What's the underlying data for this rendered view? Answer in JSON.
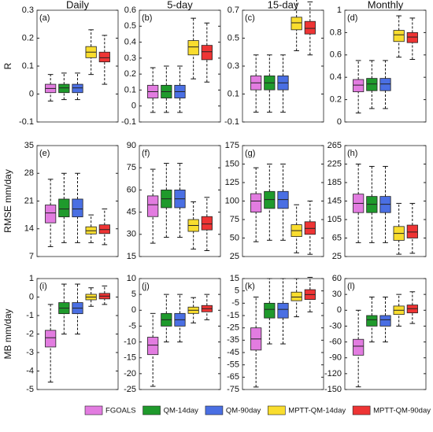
{
  "legend": [
    {
      "name": "FGOALS",
      "color": "#e27ce0"
    },
    {
      "name": "QM-14day",
      "color": "#1f9a2c"
    },
    {
      "name": "QM-90day",
      "color": "#4a6fe3"
    },
    {
      "name": "MPTT-QM-14day",
      "color": "#f9dd2e"
    },
    {
      "name": "MPTT-QM-90day",
      "color": "#ee3434"
    }
  ],
  "chart_data": [
    {
      "type": "box",
      "label": "(a)",
      "title": "Daily",
      "ylabel": "R",
      "ylim": [
        -0.1,
        0.3
      ],
      "yticks": [
        -0.1,
        0,
        0.1,
        0.2,
        0.3
      ],
      "boxes": [
        {
          "min": -0.025,
          "q1": 0.005,
          "median": 0.02,
          "q3": 0.035,
          "max": 0.07
        },
        {
          "min": -0.02,
          "q1": 0.005,
          "median": 0.022,
          "q3": 0.035,
          "max": 0.075
        },
        {
          "min": -0.02,
          "q1": 0.005,
          "median": 0.022,
          "q3": 0.035,
          "max": 0.075
        },
        {
          "min": 0.07,
          "q1": 0.13,
          "median": 0.15,
          "q3": 0.17,
          "max": 0.23
        },
        {
          "min": 0.035,
          "q1": 0.115,
          "median": 0.13,
          "q3": 0.15,
          "max": 0.21
        }
      ]
    },
    {
      "type": "box",
      "label": "(b)",
      "title": "5-day",
      "ylim": [
        -0.1,
        0.6
      ],
      "yticks": [
        -0.1,
        0,
        0.1,
        0.2,
        0.3,
        0.4,
        0.5,
        0.6
      ],
      "boxes": [
        {
          "min": -0.04,
          "q1": 0.05,
          "median": 0.09,
          "q3": 0.13,
          "max": 0.24
        },
        {
          "min": -0.04,
          "q1": 0.05,
          "median": 0.09,
          "q3": 0.13,
          "max": 0.25
        },
        {
          "min": -0.04,
          "q1": 0.05,
          "median": 0.09,
          "q3": 0.13,
          "max": 0.25
        },
        {
          "min": 0.17,
          "q1": 0.32,
          "median": 0.37,
          "q3": 0.41,
          "max": 0.55
        },
        {
          "min": 0.15,
          "q1": 0.29,
          "median": 0.34,
          "q3": 0.38,
          "max": 0.52
        }
      ]
    },
    {
      "type": "box",
      "label": "(c)",
      "title": "15-day",
      "ylim": [
        -0.1,
        0.7
      ],
      "yticks": [
        -0.1,
        0.1,
        0.3,
        0.5,
        0.7
      ],
      "boxes": [
        {
          "min": -0.03,
          "q1": 0.13,
          "median": 0.18,
          "q3": 0.23,
          "max": 0.38
        },
        {
          "min": -0.03,
          "q1": 0.13,
          "median": 0.18,
          "q3": 0.23,
          "max": 0.38
        },
        {
          "min": -0.03,
          "q1": 0.13,
          "median": 0.18,
          "q3": 0.23,
          "max": 0.38
        },
        {
          "min": 0.41,
          "q1": 0.56,
          "median": 0.61,
          "q3": 0.65,
          "max": 0.78
        },
        {
          "min": 0.38,
          "q1": 0.53,
          "median": 0.57,
          "q3": 0.62,
          "max": 0.76
        }
      ]
    },
    {
      "type": "box",
      "label": "(d)",
      "title": "Monthly",
      "ylim": [
        0,
        1
      ],
      "yticks": [
        0,
        0.2,
        0.4,
        0.6,
        0.8,
        1
      ],
      "boxes": [
        {
          "min": 0.08,
          "q1": 0.27,
          "median": 0.33,
          "q3": 0.38,
          "max": 0.55
        },
        {
          "min": 0.12,
          "q1": 0.28,
          "median": 0.34,
          "q3": 0.39,
          "max": 0.55
        },
        {
          "min": 0.12,
          "q1": 0.28,
          "median": 0.34,
          "q3": 0.39,
          "max": 0.55
        },
        {
          "min": 0.58,
          "q1": 0.72,
          "median": 0.78,
          "q3": 0.82,
          "max": 0.95
        },
        {
          "min": 0.56,
          "q1": 0.71,
          "median": 0.76,
          "q3": 0.8,
          "max": 0.93
        }
      ]
    },
    {
      "type": "box",
      "label": "(e)",
      "ylabel": "RMSE mm/day",
      "ylim": [
        7,
        35
      ],
      "yticks": [
        7,
        14,
        21,
        28,
        35
      ],
      "boxes": [
        {
          "min": 9.5,
          "q1": 15.5,
          "median": 18,
          "q3": 20,
          "max": 26.5
        },
        {
          "min": 10.5,
          "q1": 17,
          "median": 19,
          "q3": 21.5,
          "max": 28
        },
        {
          "min": 10.5,
          "q1": 17,
          "median": 19,
          "q3": 21.5,
          "max": 28
        },
        {
          "min": 10.5,
          "q1": 12.7,
          "median": 13.5,
          "q3": 14.5,
          "max": 17.5
        },
        {
          "min": 10,
          "q1": 12.8,
          "median": 13.8,
          "q3": 15,
          "max": 19
        }
      ]
    },
    {
      "type": "box",
      "label": "(f)",
      "ylim": [
        15,
        90
      ],
      "yticks": [
        15,
        30,
        45,
        60,
        75,
        90
      ],
      "boxes": [
        {
          "min": 24,
          "q1": 42,
          "median": 50,
          "q3": 56,
          "max": 74
        },
        {
          "min": 28,
          "q1": 48,
          "median": 54,
          "q3": 60,
          "max": 78
        },
        {
          "min": 28,
          "q1": 48,
          "median": 54,
          "q3": 60,
          "max": 78
        },
        {
          "min": 20,
          "q1": 32,
          "median": 36,
          "q3": 40,
          "max": 52
        },
        {
          "min": 19,
          "q1": 33,
          "median": 37,
          "q3": 42,
          "max": 55
        }
      ]
    },
    {
      "type": "box",
      "label": "(g)",
      "ylim": [
        25,
        175
      ],
      "yticks": [
        25,
        50,
        75,
        100,
        125,
        150,
        175
      ],
      "boxes": [
        {
          "min": 45,
          "q1": 85,
          "median": 100,
          "q3": 110,
          "max": 145
        },
        {
          "min": 47,
          "q1": 90,
          "median": 102,
          "q3": 113,
          "max": 150
        },
        {
          "min": 47,
          "q1": 90,
          "median": 102,
          "q3": 113,
          "max": 150
        },
        {
          "min": 30,
          "q1": 52,
          "median": 60,
          "q3": 68,
          "max": 95
        },
        {
          "min": 28,
          "q1": 55,
          "median": 63,
          "q3": 72,
          "max": 100
        }
      ]
    },
    {
      "type": "box",
      "label": "(h)",
      "ylim": [
        25,
        265
      ],
      "yticks": [
        25,
        65,
        105,
        145,
        185,
        225,
        265
      ],
      "boxes": [
        {
          "min": 55,
          "q1": 120,
          "median": 140,
          "q3": 160,
          "max": 225
        },
        {
          "min": 55,
          "q1": 120,
          "median": 138,
          "q3": 155,
          "max": 220
        },
        {
          "min": 55,
          "q1": 120,
          "median": 138,
          "q3": 155,
          "max": 220
        },
        {
          "min": 30,
          "q1": 60,
          "median": 75,
          "q3": 90,
          "max": 140
        },
        {
          "min": 32,
          "q1": 65,
          "median": 78,
          "q3": 93,
          "max": 140
        }
      ]
    },
    {
      "type": "box",
      "label": "(i)",
      "ylabel": "MB mm/day",
      "ylim": [
        -5,
        1
      ],
      "yticks": [
        -5,
        -4,
        -3,
        -2,
        -1,
        0,
        1
      ],
      "boxes": [
        {
          "min": -4.6,
          "q1": -2.7,
          "median": -2.2,
          "q3": -1.8,
          "max": -0.4
        },
        {
          "min": -2,
          "q1": -0.9,
          "median": -0.6,
          "q3": -0.3,
          "max": 0.7
        },
        {
          "min": -2,
          "q1": -0.9,
          "median": -0.6,
          "q3": -0.3,
          "max": 0.7
        },
        {
          "min": -0.5,
          "q1": -0.15,
          "median": 0,
          "q3": 0.15,
          "max": 0.5
        },
        {
          "min": -0.4,
          "q1": -0.1,
          "median": 0.05,
          "q3": 0.2,
          "max": 0.6
        }
      ]
    },
    {
      "type": "box",
      "label": "(j)",
      "ylim": [
        -25,
        10
      ],
      "yticks": [
        -25,
        -20,
        -15,
        -10,
        -5,
        0,
        5,
        10
      ],
      "boxes": [
        {
          "min": -24,
          "q1": -14,
          "median": -11,
          "q3": -8.5,
          "max": -1
        },
        {
          "min": -10,
          "q1": -5,
          "median": -3,
          "q3": -1,
          "max": 5
        },
        {
          "min": -10,
          "q1": -5,
          "median": -3,
          "q3": -1,
          "max": 5
        },
        {
          "min": -4,
          "q1": -1,
          "median": 0,
          "q3": 1,
          "max": 4
        },
        {
          "min": -3,
          "q1": -0.5,
          "median": 0.5,
          "q3": 1.5,
          "max": 5
        }
      ]
    },
    {
      "type": "box",
      "label": "(k)",
      "ylim": [
        -75,
        15
      ],
      "yticks": [
        -75,
        -65,
        -55,
        -45,
        -35,
        -25,
        -15,
        -5,
        5,
        15
      ],
      "boxes": [
        {
          "min": -73,
          "q1": -43,
          "median": -34,
          "q3": -25,
          "max": 0
        },
        {
          "min": -38,
          "q1": -17,
          "median": -10,
          "q3": -5,
          "max": 15
        },
        {
          "min": -38,
          "q1": -17,
          "median": -10,
          "q3": -5,
          "max": 15
        },
        {
          "min": -16,
          "q1": -3,
          "median": 0,
          "q3": 4,
          "max": 15
        },
        {
          "min": -12,
          "q1": -2,
          "median": 2,
          "q3": 6,
          "max": 16
        }
      ]
    },
    {
      "type": "box",
      "label": "(l)",
      "ylim": [
        -150,
        60
      ],
      "yticks": [
        -150,
        -120,
        -90,
        -60,
        -30,
        0,
        30,
        60
      ],
      "boxes": [
        {
          "min": -145,
          "q1": -85,
          "median": -68,
          "q3": -55,
          "max": 0
        },
        {
          "min": -60,
          "q1": -30,
          "median": -18,
          "q3": -10,
          "max": 25
        },
        {
          "min": -60,
          "q1": -30,
          "median": -18,
          "q3": -10,
          "max": 25
        },
        {
          "min": -30,
          "q1": -8,
          "median": 0,
          "q3": 8,
          "max": 30
        },
        {
          "min": -25,
          "q1": -5,
          "median": 3,
          "q3": 10,
          "max": 35
        }
      ]
    }
  ]
}
